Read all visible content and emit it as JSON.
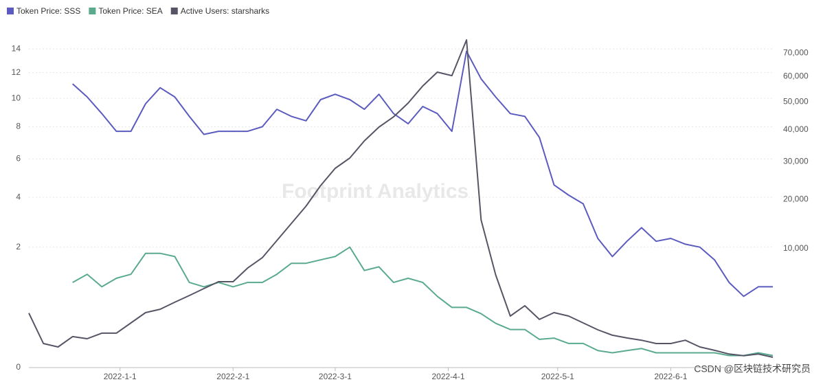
{
  "chart_data": {
    "type": "line",
    "x": [
      "2021-12-7",
      "2021-12-11",
      "2021-12-15",
      "2021-12-19",
      "2021-12-23",
      "2021-12-27",
      "2021-12-31",
      "2022-1-4",
      "2022-1-8",
      "2022-1-12",
      "2022-1-16",
      "2022-1-20",
      "2022-1-24",
      "2022-1-28",
      "2022-2-1",
      "2022-2-5",
      "2022-2-9",
      "2022-2-13",
      "2022-2-17",
      "2022-2-21",
      "2022-2-25",
      "2022-3-1",
      "2022-3-5",
      "2022-3-9",
      "2022-3-13",
      "2022-3-17",
      "2022-3-21",
      "2022-3-25",
      "2022-3-29",
      "2022-4-2",
      "2022-4-6",
      "2022-4-10",
      "2022-4-14",
      "2022-4-18",
      "2022-4-22",
      "2022-4-26",
      "2022-4-30",
      "2022-5-4",
      "2022-5-8",
      "2022-5-12",
      "2022-5-16",
      "2022-5-20",
      "2022-5-24",
      "2022-5-28",
      "2022-6-1",
      "2022-6-5",
      "2022-6-9",
      "2022-6-13",
      "2022-6-17",
      "2022-6-21",
      "2022-6-25",
      "2022-6-29"
    ],
    "xlim": [
      "2021-12-7",
      "2022-6-29"
    ],
    "xticks": [
      "2022-1-1",
      "2022-2-1",
      "2022-3-1",
      "2022-4-1",
      "2022-5-1",
      "2022-6-1"
    ],
    "series": [
      {
        "name": "Token Price: SSS",
        "color": "#5b5bbf",
        "values": [
          null,
          null,
          null,
          11.1,
          10.1,
          8.9,
          7.7,
          7.7,
          9.6,
          10.8,
          10.1,
          8.7,
          7.5,
          7.7,
          7.7,
          7.7,
          8.0,
          9.2,
          8.7,
          8.4,
          9.9,
          10.3,
          9.9,
          9.2,
          10.3,
          8.9,
          8.2,
          9.4,
          8.9,
          7.7,
          13.8,
          11.5,
          10.1,
          8.9,
          8.7,
          7.3,
          4.6,
          4.1,
          3.7,
          2.3,
          1.7,
          2.2,
          2.7,
          2.2,
          2.3,
          2.1,
          2.0,
          1.6,
          1.0,
          0.7,
          0.9,
          0.9
        ]
      },
      {
        "name": "Token Price: SEA",
        "color": "#5aaa8e",
        "values": [
          null,
          null,
          null,
          1.0,
          1.2,
          0.9,
          1.1,
          1.2,
          1.8,
          1.8,
          1.7,
          1.0,
          0.9,
          1.0,
          0.9,
          1.0,
          1.0,
          1.2,
          1.5,
          1.5,
          1.6,
          1.7,
          2.0,
          1.3,
          1.4,
          1.0,
          1.1,
          1.0,
          0.7,
          0.5,
          0.5,
          0.4,
          0.27,
          0.2,
          0.2,
          0.11,
          0.12,
          0.08,
          0.08,
          0.04,
          0.03,
          0.04,
          0.05,
          0.03,
          0.03,
          0.03,
          0.03,
          0.03,
          0.02,
          0.02,
          0.03,
          0.02
        ]
      },
      {
        "name": "Active Users: starsharks",
        "color": "#555566",
        "axis": "y2",
        "values": [
          2100,
          410,
          300,
          680,
          590,
          840,
          840,
          1410,
          2140,
          2410,
          3020,
          3680,
          4420,
          5220,
          5220,
          7020,
          8550,
          11430,
          14730,
          18450,
          23460,
          28100,
          31080,
          36390,
          40930,
          44500,
          49530,
          56160,
          61780,
          60350,
          76000,
          15440,
          6090,
          1880,
          2710,
          1640,
          2140,
          1880,
          1410,
          1010,
          740,
          620,
          530,
          410,
          410,
          530,
          300,
          210,
          130,
          100,
          130,
          75
        ]
      }
    ],
    "scale": "sqrt",
    "ylim": [
      0,
      15
    ],
    "yticks": [
      0,
      2,
      4,
      6,
      8,
      10,
      12,
      14
    ],
    "y2lim": [
      0,
      77000
    ],
    "y2ticks": [
      {
        "value": 10000,
        "label": "10,000"
      },
      {
        "value": 20000,
        "label": "20,000"
      },
      {
        "value": 30000,
        "label": "30,000"
      },
      {
        "value": 40000,
        "label": "40,000"
      },
      {
        "value": 50000,
        "label": "50,000"
      },
      {
        "value": 60000,
        "label": "60,000"
      },
      {
        "value": 70000,
        "label": "70,000"
      }
    ],
    "grid": true,
    "legend": "top-left",
    "watermark": "Footprint Analytics",
    "credit": "CSDN @区块链技术研究员"
  }
}
